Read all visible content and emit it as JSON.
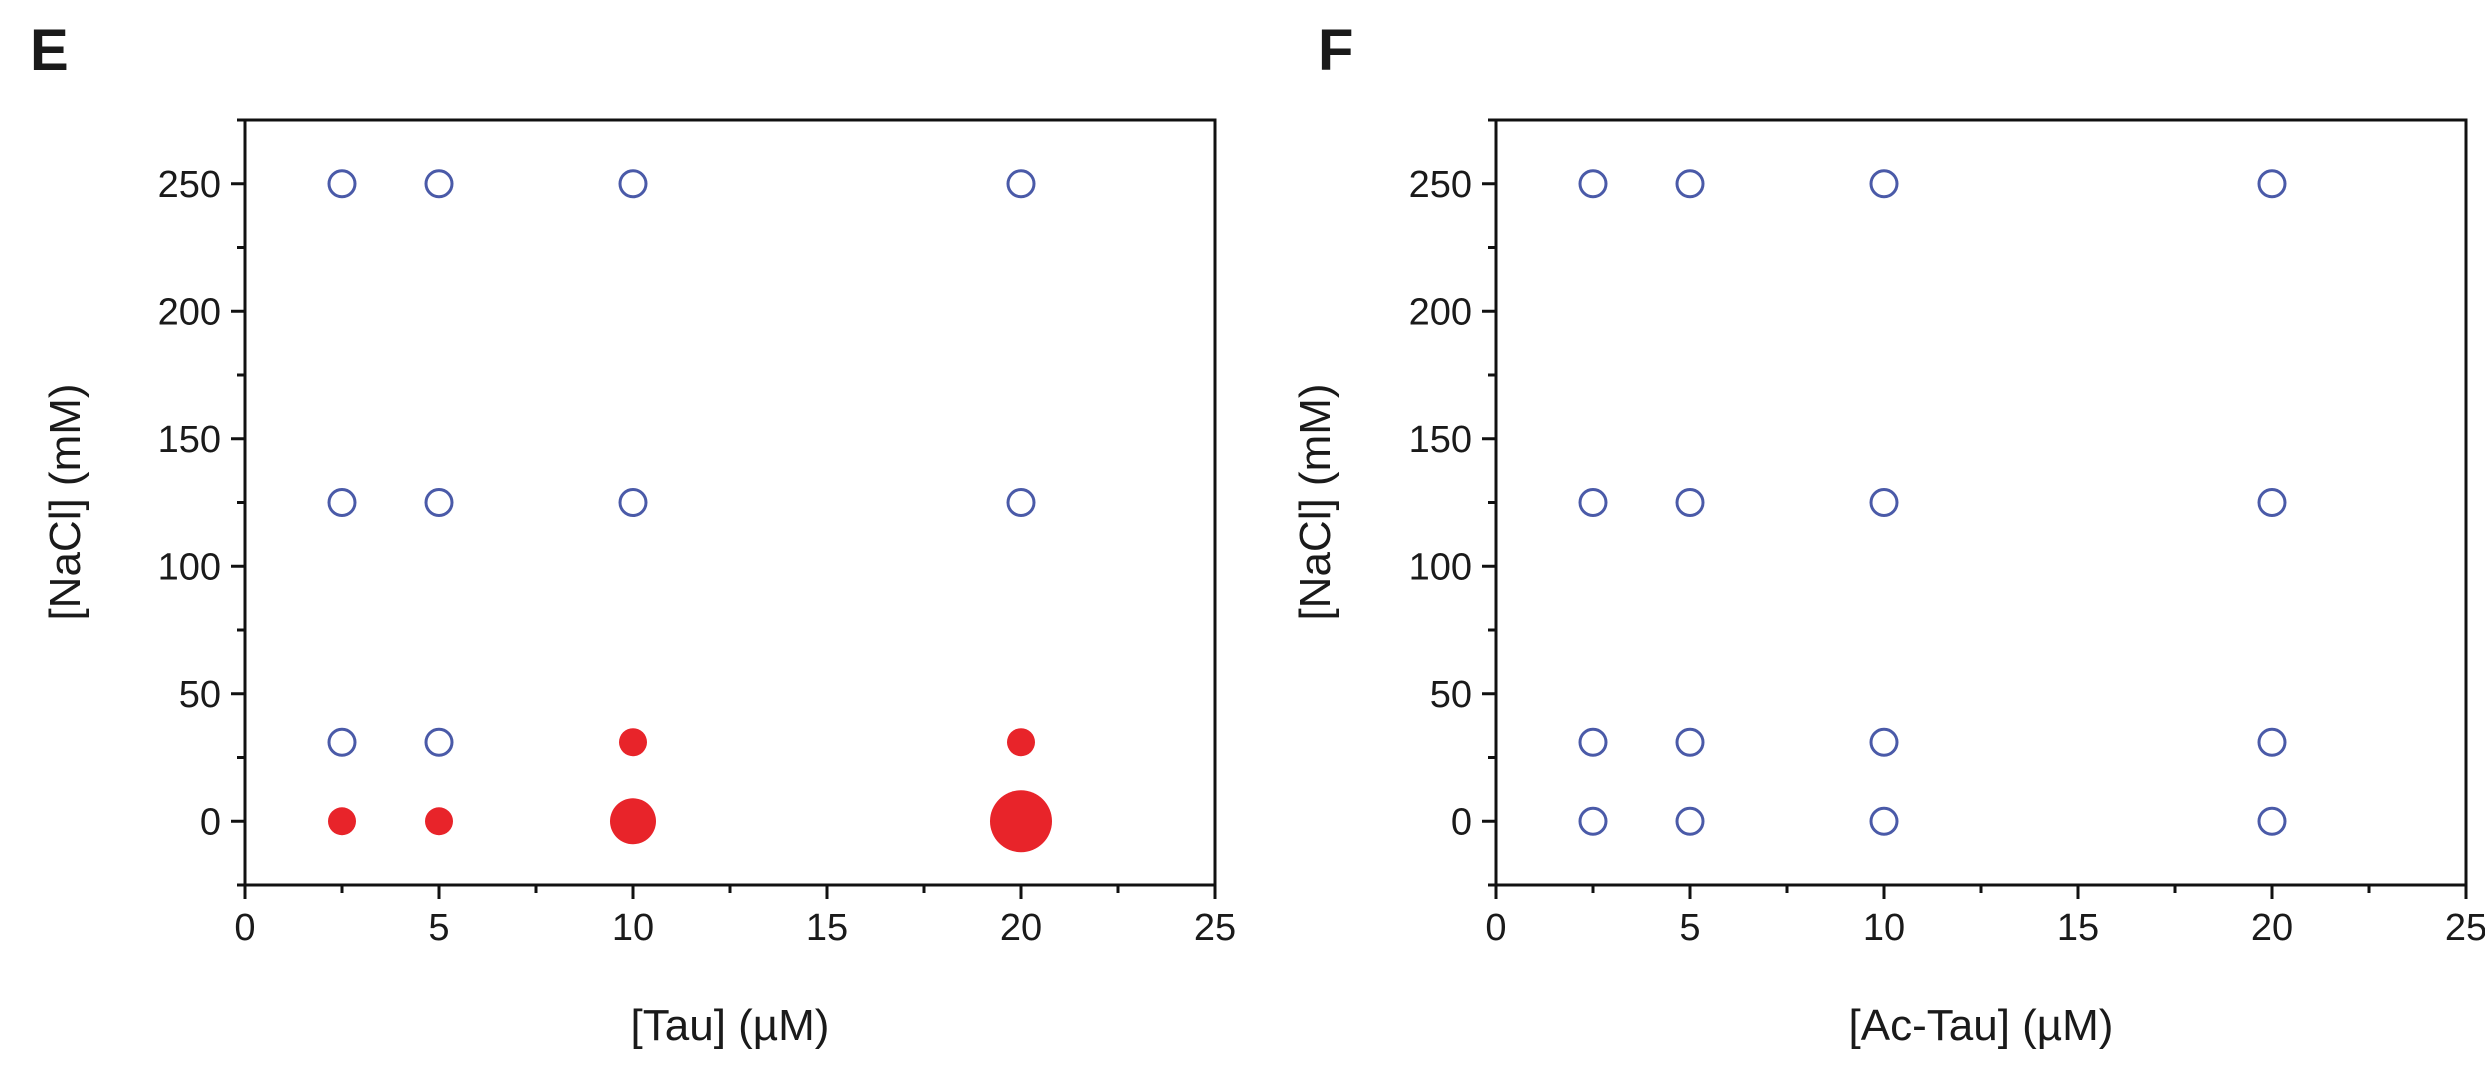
{
  "colors": {
    "condensed": "#e8242a",
    "no_condensation": "#4a5aa8",
    "axis": "#111111"
  },
  "chart_data": [
    {
      "type": "scatter",
      "panel_label": "E",
      "xlabel": "[Tau] (µM)",
      "ylabel": "[NaCl] (mM)",
      "xlim": [
        0,
        25
      ],
      "ylim": [
        -25,
        275
      ],
      "xticks": [
        0,
        5,
        10,
        15,
        20,
        25
      ],
      "yticks": [
        0,
        50,
        100,
        150,
        200,
        250
      ],
      "grid": false,
      "legend": "none",
      "points": [
        {
          "x": 2.5,
          "y": 250,
          "marker": "open",
          "size": 1
        },
        {
          "x": 5,
          "y": 250,
          "marker": "open",
          "size": 1
        },
        {
          "x": 10,
          "y": 250,
          "marker": "open",
          "size": 1
        },
        {
          "x": 20,
          "y": 250,
          "marker": "open",
          "size": 1
        },
        {
          "x": 2.5,
          "y": 125,
          "marker": "open",
          "size": 1
        },
        {
          "x": 5,
          "y": 125,
          "marker": "open",
          "size": 1
        },
        {
          "x": 10,
          "y": 125,
          "marker": "open",
          "size": 1
        },
        {
          "x": 20,
          "y": 125,
          "marker": "open",
          "size": 1
        },
        {
          "x": 2.5,
          "y": 31,
          "marker": "open",
          "size": 1
        },
        {
          "x": 5,
          "y": 31,
          "marker": "open",
          "size": 1
        },
        {
          "x": 10,
          "y": 31,
          "marker": "filled",
          "size": 1
        },
        {
          "x": 20,
          "y": 31,
          "marker": "filled",
          "size": 1
        },
        {
          "x": 2.5,
          "y": 0,
          "marker": "filled",
          "size": 1
        },
        {
          "x": 5,
          "y": 0,
          "marker": "filled",
          "size": 1
        },
        {
          "x": 10,
          "y": 0,
          "marker": "filled",
          "size": 2
        },
        {
          "x": 20,
          "y": 0,
          "marker": "filled",
          "size": 3
        }
      ]
    },
    {
      "type": "scatter",
      "panel_label": "F",
      "xlabel": "[Ac-Tau] (µM)",
      "ylabel": "[NaCl] (mM)",
      "xlim": [
        0,
        25
      ],
      "ylim": [
        -25,
        275
      ],
      "xticks": [
        0,
        5,
        10,
        15,
        20,
        25
      ],
      "yticks": [
        0,
        50,
        100,
        150,
        200,
        250
      ],
      "grid": false,
      "legend": "none",
      "points": [
        {
          "x": 2.5,
          "y": 250,
          "marker": "open",
          "size": 1
        },
        {
          "x": 5,
          "y": 250,
          "marker": "open",
          "size": 1
        },
        {
          "x": 10,
          "y": 250,
          "marker": "open",
          "size": 1
        },
        {
          "x": 20,
          "y": 250,
          "marker": "open",
          "size": 1
        },
        {
          "x": 2.5,
          "y": 125,
          "marker": "open",
          "size": 1
        },
        {
          "x": 5,
          "y": 125,
          "marker": "open",
          "size": 1
        },
        {
          "x": 10,
          "y": 125,
          "marker": "open",
          "size": 1
        },
        {
          "x": 20,
          "y": 125,
          "marker": "open",
          "size": 1
        },
        {
          "x": 2.5,
          "y": 31,
          "marker": "open",
          "size": 1
        },
        {
          "x": 5,
          "y": 31,
          "marker": "open",
          "size": 1
        },
        {
          "x": 10,
          "y": 31,
          "marker": "open",
          "size": 1
        },
        {
          "x": 20,
          "y": 31,
          "marker": "open",
          "size": 1
        },
        {
          "x": 2.5,
          "y": 0,
          "marker": "open",
          "size": 1
        },
        {
          "x": 5,
          "y": 0,
          "marker": "open",
          "size": 1
        },
        {
          "x": 10,
          "y": 0,
          "marker": "open",
          "size": 1
        },
        {
          "x": 20,
          "y": 0,
          "marker": "open",
          "size": 1
        }
      ]
    }
  ]
}
